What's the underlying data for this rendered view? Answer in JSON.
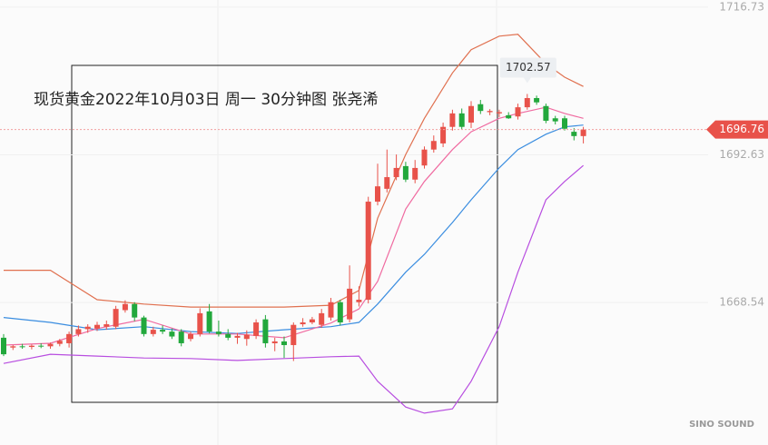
{
  "chart_data": {
    "type": "candlestick",
    "title": "现货黄金2022年10月03日 周一 30分钟图 张尧浠",
    "watermark": "SINO SOUND",
    "ylim": [
      1645.3,
      1717.9
    ],
    "yticks": [
      1716.73,
      1692.63,
      1668.54
    ],
    "up_color": "#e8524a",
    "down_color": "#22a83c",
    "open": [
      1662.8,
      1661.2,
      1661.4,
      1661.3,
      1661.5,
      1661.4,
      1661.8,
      1661.9,
      1663.4,
      1664.2,
      1664.3,
      1664.6,
      1664.6,
      1667.3,
      1668.3,
      1666.1,
      1663.4,
      1664.1,
      1663.8,
      1663.8,
      1662.6,
      1663.4,
      1667.1,
      1663.8,
      1663.4,
      1662.8,
      1662.6,
      1663.1,
      1665.8,
      1661.9,
      1662.2,
      1661.6,
      1665.0,
      1665.3,
      1664.9,
      1666.1,
      1668.6,
      1665.8,
      1668.6,
      1669.0,
      1685.0,
      1687.1,
      1689.0,
      1690.8,
      1688.6,
      1690.9,
      1693.5,
      1694.5,
      1697.2,
      1699.4,
      1697.9,
      1700.9,
      1699.6,
      1699.4,
      1699.1,
      1698.9,
      1700.4,
      1701.9,
      1700.6,
      1698.6,
      1698.6,
      1696.4,
      1695.7
    ],
    "high": [
      1663.4,
      1661.6,
      1661.8,
      1661.7,
      1661.9,
      1662.0,
      1662.6,
      1663.8,
      1664.8,
      1665.0,
      1665.4,
      1665.6,
      1668.0,
      1668.9,
      1668.6,
      1666.4,
      1664.6,
      1664.8,
      1664.3,
      1664.2,
      1663.8,
      1667.6,
      1668.3,
      1665.6,
      1664.2,
      1663.6,
      1664.0,
      1665.8,
      1666.5,
      1662.8,
      1663.0,
      1665.3,
      1666.0,
      1666.2,
      1667.5,
      1669.3,
      1669.0,
      1674.6,
      1671.2,
      1685.8,
      1691.2,
      1693.5,
      1692.7,
      1691.5,
      1691.8,
      1694.0,
      1695.8,
      1697.9,
      1700.0,
      1700.2,
      1701.4,
      1701.6,
      1700.1,
      1700.0,
      1699.6,
      1701.0,
      1702.57,
      1702.3,
      1701.0,
      1699.0,
      1699.0,
      1697.0,
      1697.2
    ],
    "low": [
      1659.8,
      1660.8,
      1661.0,
      1660.9,
      1661.1,
      1661.0,
      1661.4,
      1661.2,
      1663.0,
      1663.6,
      1663.9,
      1664.1,
      1664.2,
      1666.9,
      1665.5,
      1663.0,
      1663.0,
      1663.4,
      1662.6,
      1661.4,
      1662.2,
      1663.0,
      1663.5,
      1663.0,
      1662.4,
      1661.8,
      1661.5,
      1662.6,
      1661.2,
      1660.6,
      1659.5,
      1659.0,
      1664.6,
      1665.0,
      1664.4,
      1665.6,
      1664.8,
      1665.3,
      1667.9,
      1668.4,
      1684.4,
      1686.5,
      1688.5,
      1688.2,
      1688.0,
      1690.4,
      1693.0,
      1693.9,
      1696.6,
      1696.8,
      1697.0,
      1699.3,
      1699.1,
      1698.8,
      1698.5,
      1698.4,
      1700.0,
      1700.8,
      1697.8,
      1697.6,
      1696.6,
      1695.0,
      1694.5
    ],
    "close": [
      1660.1,
      1661.4,
      1661.3,
      1661.5,
      1661.4,
      1661.8,
      1662.3,
      1663.4,
      1664.2,
      1664.6,
      1664.9,
      1665.0,
      1667.5,
      1668.3,
      1666.1,
      1663.4,
      1664.1,
      1663.8,
      1663.0,
      1661.9,
      1663.4,
      1666.8,
      1663.8,
      1663.4,
      1662.8,
      1663.1,
      1663.3,
      1665.3,
      1661.9,
      1662.2,
      1661.6,
      1664.9,
      1665.3,
      1665.8,
      1666.8,
      1668.6,
      1665.3,
      1670.8,
      1669.0,
      1685.0,
      1687.5,
      1689.0,
      1690.5,
      1688.6,
      1690.5,
      1693.5,
      1694.9,
      1697.2,
      1699.4,
      1697.2,
      1700.6,
      1699.8,
      1699.8,
      1699.6,
      1698.6,
      1700.4,
      1701.9,
      1701.2,
      1698.2,
      1698.1,
      1696.9,
      1695.7,
      1696.76
    ],
    "lines": [
      {
        "color": "#e0704f",
        "x": [
          0,
          5,
          10,
          15,
          20,
          25,
          30,
          35,
          38,
          40,
          43,
          45,
          48,
          50,
          53,
          55,
          58,
          60,
          62
        ],
        "values": [
          1673.8,
          1673.8,
          1669.0,
          1668.3,
          1667.8,
          1667.8,
          1667.8,
          1668.1,
          1670.5,
          1682.3,
          1692.7,
          1698.6,
          1706.0,
          1709.8,
          1712.0,
          1712.3,
          1707.5,
          1705.3,
          1703.8
        ]
      },
      {
        "color": "#3a8de0",
        "x": [
          0,
          5,
          10,
          15,
          20,
          25,
          30,
          35,
          38,
          40,
          43,
          45,
          48,
          50,
          53,
          55,
          58,
          60,
          62
        ],
        "values": [
          1666.1,
          1665.3,
          1664.1,
          1664.6,
          1663.8,
          1663.5,
          1664.1,
          1664.6,
          1665.3,
          1668.3,
          1673.5,
          1676.4,
          1681.6,
          1685.3,
          1690.5,
          1693.5,
          1696.0,
          1697.2,
          1697.5
        ]
      },
      {
        "color": "#b84ee0",
        "x": [
          0,
          5,
          10,
          15,
          20,
          25,
          30,
          35,
          38,
          40,
          43,
          45,
          48,
          50,
          53,
          55,
          58,
          60,
          62
        ],
        "values": [
          1658.6,
          1660.1,
          1659.8,
          1659.5,
          1659.4,
          1659.1,
          1659.4,
          1659.7,
          1659.8,
          1655.7,
          1651.5,
          1650.5,
          1651.2,
          1655.7,
          1664.6,
          1673.5,
          1685.3,
          1688.3,
          1690.9
        ]
      },
      {
        "color": "#f06aa0",
        "x": [
          0,
          5,
          10,
          15,
          20,
          25,
          30,
          35,
          38,
          40,
          43,
          45,
          48,
          50,
          53,
          55,
          58,
          60,
          62
        ],
        "values": [
          1661.6,
          1661.9,
          1664.3,
          1665.8,
          1663.4,
          1663.4,
          1662.8,
          1665.2,
          1667.5,
          1672.0,
          1683.8,
          1688.3,
          1693.5,
          1696.4,
          1698.6,
          1699.4,
          1700.4,
          1699.4,
          1698.6
        ]
      }
    ],
    "high_annotation": {
      "index": 56,
      "value": 1702.57
    },
    "last_price": 1696.76
  }
}
